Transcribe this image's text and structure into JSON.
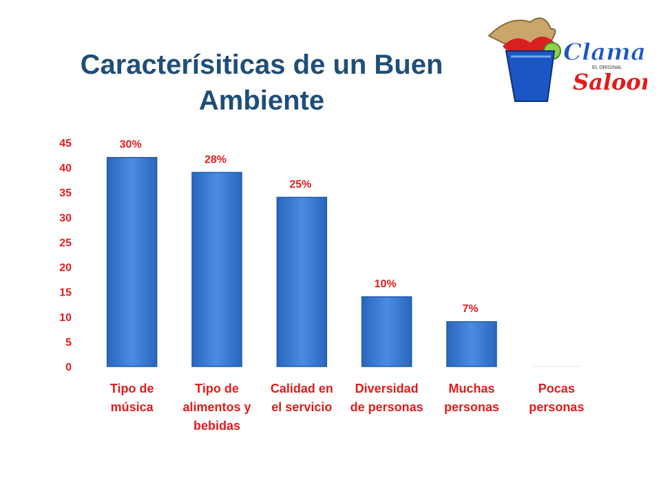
{
  "title_lines": [
    "Caracterísiticas de un Buen",
    "Ambiente"
  ],
  "logo": {
    "line1": "Clamato",
    "line2": "Saloon",
    "small": "EL ORIGINAL"
  },
  "chart_data": {
    "type": "bar",
    "title": "Caracterísiticas de un Buen Ambiente",
    "categories": [
      [
        "Tipo de",
        "música"
      ],
      [
        "Tipo de",
        "alimentos y",
        "bebidas"
      ],
      [
        "Calidad en",
        "el servicio"
      ],
      [
        "Diversidad",
        "de personas"
      ],
      [
        "Muchas",
        "personas"
      ],
      [
        "Pocas",
        "personas"
      ]
    ],
    "values": [
      42,
      39,
      34,
      14,
      9,
      0
    ],
    "data_labels": [
      "30%",
      "28%",
      "25%",
      "10%",
      "7%",
      ""
    ],
    "yticks": [
      0,
      5,
      10,
      15,
      20,
      25,
      30,
      35,
      40,
      45
    ],
    "ylim": [
      0,
      45
    ],
    "colors": {
      "bar": "#3a7ad0",
      "bar_light": "#5b97e0",
      "bar_dark": "#1f5aa8",
      "text": "#e31b1b",
      "title": "#1f4e79"
    }
  }
}
